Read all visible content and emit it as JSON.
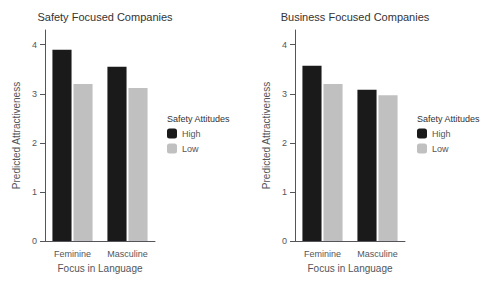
{
  "chart_data": [
    {
      "type": "bar",
      "title": "Safety Focused Companies",
      "xlabel": "Focus in Language",
      "ylabel": "Predicted Attractiveness",
      "categories": [
        "Feminine",
        "Masculine"
      ],
      "series": [
        {
          "name": "High",
          "color": "#1a1a1a",
          "values": [
            3.9,
            3.55
          ]
        },
        {
          "name": "Low",
          "color": "#c0c0c0",
          "values": [
            3.2,
            3.12
          ]
        }
      ],
      "legend_title": "Safety Attitudes",
      "legend": "right",
      "ylim": [
        0,
        4.3
      ],
      "yticks": [
        0,
        1,
        2,
        3,
        4
      ],
      "grid": false
    },
    {
      "type": "bar",
      "title": "Business Focused Companies",
      "xlabel": "Focus in Language",
      "ylabel": "Predicted Attractiveness",
      "categories": [
        "Feminine",
        "Masculine"
      ],
      "series": [
        {
          "name": "High",
          "color": "#1a1a1a",
          "values": [
            3.57,
            3.08
          ]
        },
        {
          "name": "Low",
          "color": "#c0c0c0",
          "values": [
            3.2,
            2.97
          ]
        }
      ],
      "legend_title": "Safety Attitudes",
      "legend": "right",
      "ylim": [
        0,
        4.3
      ],
      "yticks": [
        0,
        1,
        2,
        3,
        4
      ],
      "grid": false
    }
  ]
}
